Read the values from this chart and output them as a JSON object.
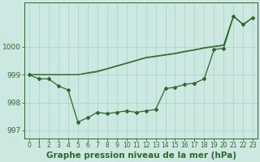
{
  "title": "Graphe pression niveau de la mer (hPa)",
  "x_labels": [
    "0",
    "1",
    "2",
    "3",
    "4",
    "5",
    "6",
    "7",
    "8",
    "9",
    "10",
    "11",
    "12",
    "13",
    "14",
    "15",
    "16",
    "17",
    "18",
    "19",
    "20",
    "21",
    "22",
    "23"
  ],
  "hours": [
    0,
    1,
    2,
    3,
    4,
    5,
    6,
    7,
    8,
    9,
    10,
    11,
    12,
    13,
    14,
    15,
    16,
    17,
    18,
    19,
    20,
    21,
    22,
    23
  ],
  "line_main": [
    999.0,
    998.85,
    998.85,
    998.6,
    998.45,
    997.3,
    997.45,
    997.65,
    997.6,
    997.65,
    997.7,
    997.65,
    997.7,
    997.75,
    998.5,
    998.55,
    998.65,
    998.7,
    998.85,
    999.9,
    999.95,
    1001.1,
    1000.8,
    1001.05
  ],
  "line_trend1": [
    999.0,
    999.0,
    999.0,
    999.0,
    999.0,
    999.0,
    999.05,
    999.1,
    999.2,
    999.3,
    999.4,
    999.5,
    999.6,
    999.65,
    999.7,
    999.75,
    999.82,
    999.88,
    999.95,
    1000.0,
    1000.05,
    1001.1,
    1000.8,
    1001.05
  ],
  "line_trend2": [
    999.0,
    999.0,
    999.0,
    999.0,
    999.0,
    999.0,
    999.07,
    999.13,
    999.22,
    999.32,
    999.42,
    999.52,
    999.62,
    999.67,
    999.72,
    999.77,
    999.84,
    999.9,
    999.97,
    1000.02,
    1000.07,
    1001.1,
    1000.8,
    1001.05
  ],
  "line_color": "#2d6a2d",
  "bg_color": "#cce8e0",
  "grid_color": "#aad0c8",
  "ylim": [
    996.7,
    1001.6
  ],
  "yticks": [
    997,
    998,
    999,
    1000
  ],
  "xlim": [
    -0.5,
    23.5
  ],
  "title_fontsize": 7.5,
  "tick_fontsize": 6.5,
  "marker": "D",
  "markersize": 2.0,
  "linewidth": 0.9
}
